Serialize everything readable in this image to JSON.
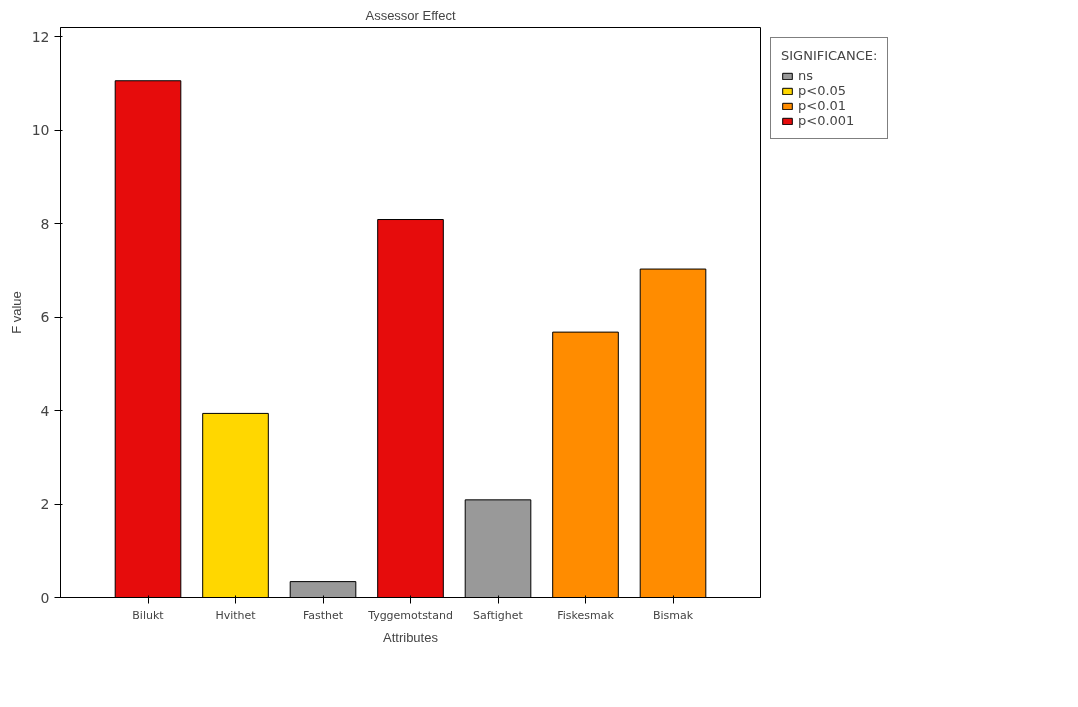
{
  "chart_data": {
    "type": "bar",
    "title": "Assessor Effect",
    "xlabel": "Attributes",
    "ylabel": "F value",
    "categories": [
      "Bilukt",
      "Hvithet",
      "Fasthet",
      "Tyggemotstand",
      "Saftighet",
      "Fiskesmak",
      "Bismak"
    ],
    "series": [
      {
        "name": "ns",
        "color": "#999999",
        "values": [
          null,
          null,
          0.34,
          null,
          2.09,
          null,
          null
        ]
      },
      {
        "name": "p<0.05",
        "color": "#ffd700",
        "values": [
          null,
          3.94,
          null,
          null,
          null,
          null,
          null
        ]
      },
      {
        "name": "p<0.01",
        "color": "#ff8c00",
        "values": [
          null,
          null,
          null,
          null,
          null,
          5.68,
          7.03
        ]
      },
      {
        "name": "p<0.001",
        "color": "#e60c0c",
        "values": [
          11.06,
          null,
          null,
          8.09,
          null,
          null,
          null
        ]
      }
    ],
    "legend_title": "SIGNIFICANCE:",
    "legend": "top right",
    "ylim": [
      0,
      12.2
    ],
    "yticks": [
      0,
      2,
      4,
      6,
      8,
      10,
      12
    ],
    "grid": false
  }
}
